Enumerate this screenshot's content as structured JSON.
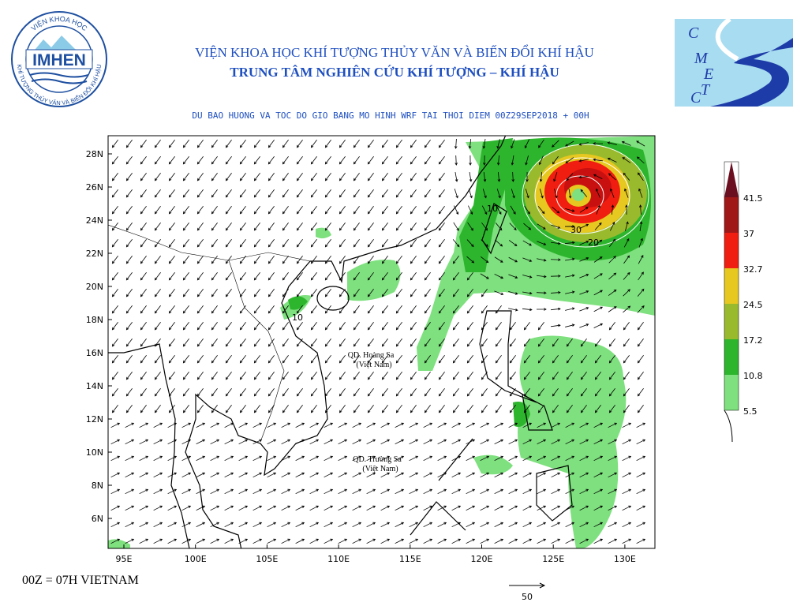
{
  "header": {
    "institute": "VIỆN KHOA HỌC KHÍ TƯỢNG THỦY VĂN VÀ BIẾN ĐỔI KHÍ HẬU",
    "center": "TRUNG TÂM NGHIÊN CỨU KHÍ TƯỢNG – KHÍ HẬU",
    "logo_left": "IMHEN",
    "logo_left_ring_top": "VIỆN KHOA HỌC",
    "logo_left_ring_bottom": "KHÍ TƯỢNG THỦY VĂN VÀ BIẾN ĐỔI KHÍ HẬU",
    "logo_right_letters": [
      "C",
      "M",
      "E",
      "T",
      "C"
    ]
  },
  "map": {
    "subtitle": "DU BAO HUONG VA TOC DO GIO BANG MO HINH WRF TAI THOI DIEM  00Z29SEP2018 + 00H",
    "y_labels": [
      "28N",
      "26N",
      "24N",
      "22N",
      "20N",
      "18N",
      "16N",
      "14N",
      "12N",
      "10N",
      "8N",
      "6N"
    ],
    "x_labels": [
      "95E",
      "100E",
      "105E",
      "110E",
      "115E",
      "120E",
      "125E",
      "130E"
    ],
    "contour_labels": [
      "10",
      "30",
      "20",
      "10"
    ],
    "places": [
      {
        "name": "QD. Hoàng Sa",
        "note": "(Việt Nam)"
      },
      {
        "name": "QD. Trường Sa",
        "note": "(Việt Nam)"
      }
    ]
  },
  "legend": {
    "labels": [
      "41.5",
      "37",
      "32.7",
      "24.5",
      "17.2",
      "10.8",
      "5.5"
    ]
  },
  "footer": {
    "time_note": "00Z = 07H VIETNAM",
    "reference_vector": "50"
  }
}
